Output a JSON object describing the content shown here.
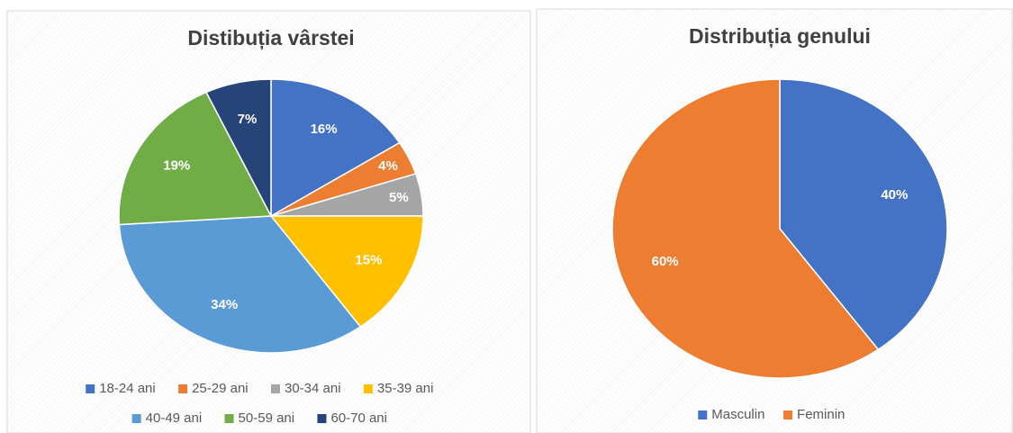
{
  "chart_data": [
    {
      "type": "pie",
      "title": "Distibuția vârstei",
      "categories": [
        "18-24 ani",
        "25-29 ani",
        "30-34 ani",
        "35-39 ani",
        "40-49 ani",
        "50-59 ani",
        "60-70 ani"
      ],
      "values": [
        16,
        4,
        5,
        15,
        34,
        19,
        7
      ],
      "value_labels": [
        "16%",
        "4%",
        "5%",
        "15%",
        "34%",
        "19%",
        "7%"
      ],
      "colors": [
        "#4472c4",
        "#ed7d31",
        "#a5a5a5",
        "#ffc000",
        "#5b9bd5",
        "#70ad47",
        "#264478"
      ],
      "legend": "bottom"
    },
    {
      "type": "pie",
      "title": "Distribuția genului",
      "categories": [
        "Masculin",
        "Feminin"
      ],
      "values": [
        40,
        60
      ],
      "value_labels": [
        "40%",
        "60%"
      ],
      "colors": [
        "#4472c4",
        "#ed7d31"
      ],
      "legend": "bottom"
    }
  ]
}
